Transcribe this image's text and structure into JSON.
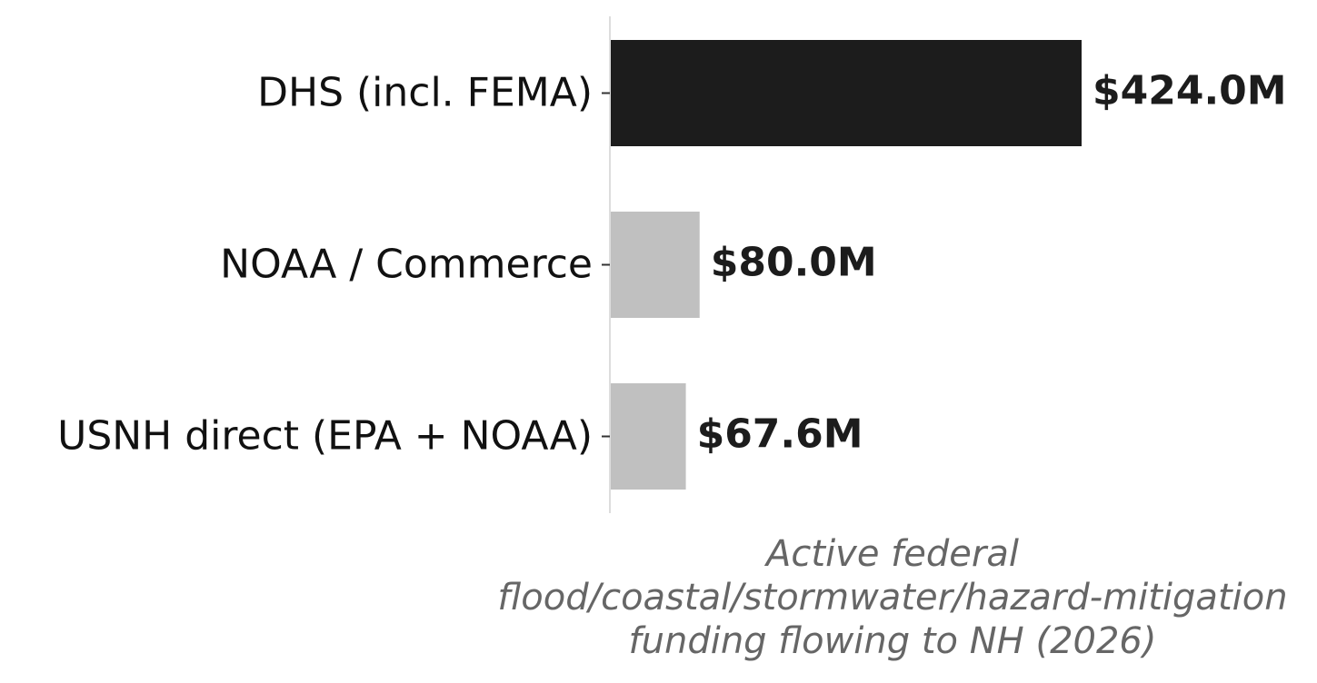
{
  "chart_data": {
    "type": "bar",
    "orientation": "horizontal",
    "categories": [
      "DHS (incl. FEMA)",
      "NOAA / Commerce",
      "USNH direct (EPA + NOAA)"
    ],
    "values": [
      424.0,
      80.0,
      67.6
    ],
    "value_labels": [
      "$424.0M",
      "$80.0M",
      "$67.6M"
    ],
    "colors": [
      "#1c1c1c",
      "#c0c0c0",
      "#c0c0c0"
    ],
    "xlabel": [
      "Active federal",
      "flood/coastal/stormwater/hazard-mitigation",
      "funding flowing to NH (2026)"
    ]
  }
}
